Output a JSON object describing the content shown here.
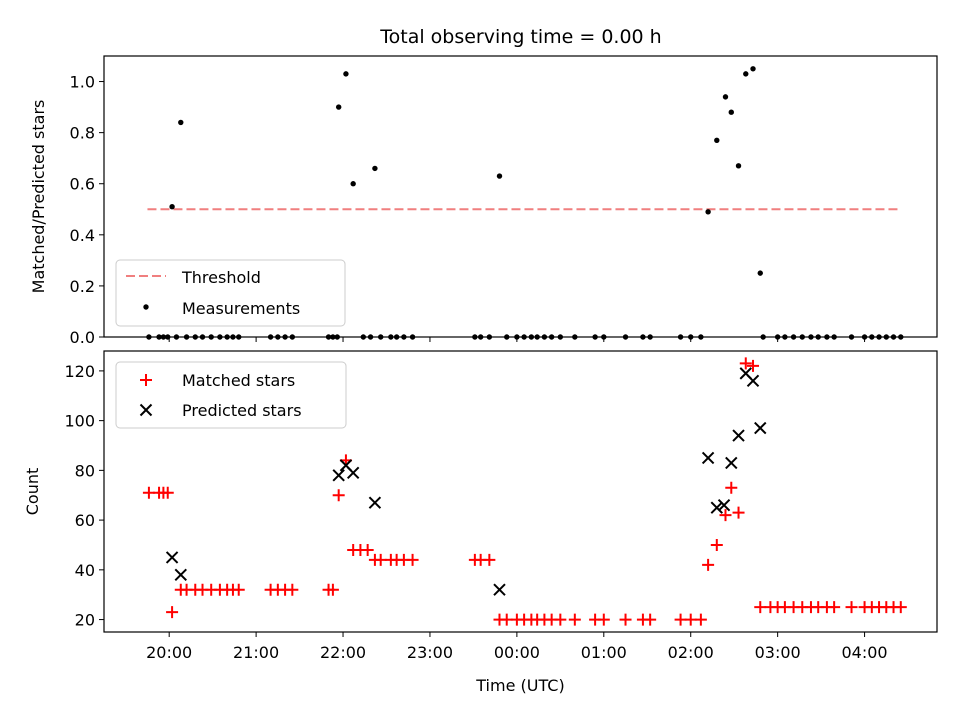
{
  "title": "Total observing time = 0.00 h",
  "chart_data": [
    {
      "type": "scatter",
      "ylabel": "Matched/Predicted stars",
      "ylim": [
        0,
        1.1
      ],
      "yticks": [
        "0.0",
        "0.2",
        "0.4",
        "0.6",
        "0.8",
        "1.0"
      ],
      "xlim": [
        "19:15",
        "04:50"
      ],
      "legend_position": "lower-left",
      "threshold": {
        "name": "Threshold",
        "value": 0.5,
        "x": [
          "19:45",
          "04:25"
        ],
        "color": "#f07f7f",
        "style": "dashed"
      },
      "series": [
        {
          "name": "Measurements",
          "color": "#000000",
          "points": [
            [
              "19:46",
              0
            ],
            [
              "19:53",
              0
            ],
            [
              "19:56",
              0
            ],
            [
              "19:59",
              0
            ],
            [
              "20:02",
              0.51
            ],
            [
              "20:08",
              0.84
            ],
            [
              "20:05",
              0
            ],
            [
              "20:12",
              0
            ],
            [
              "20:18",
              0
            ],
            [
              "20:23",
              0
            ],
            [
              "20:29",
              0
            ],
            [
              "20:35",
              0
            ],
            [
              "20:40",
              0
            ],
            [
              "20:44",
              0
            ],
            [
              "20:48",
              0
            ],
            [
              "21:10",
              0
            ],
            [
              "21:15",
              0
            ],
            [
              "21:20",
              0
            ],
            [
              "21:25",
              0
            ],
            [
              "21:50",
              0
            ],
            [
              "21:53",
              0
            ],
            [
              "21:56",
              0
            ],
            [
              "21:57",
              0.9
            ],
            [
              "22:02",
              1.03
            ],
            [
              "22:07",
              0.6
            ],
            [
              "22:22",
              0.66
            ],
            [
              "22:14",
              0
            ],
            [
              "22:19",
              0
            ],
            [
              "22:26",
              0
            ],
            [
              "22:33",
              0
            ],
            [
              "22:37",
              0
            ],
            [
              "22:42",
              0
            ],
            [
              "22:48",
              0
            ],
            [
              "23:31",
              0
            ],
            [
              "23:35",
              0
            ],
            [
              "23:41",
              0
            ],
            [
              "23:48",
              0.63
            ],
            [
              "23:53",
              0
            ],
            [
              "24:00",
              0
            ],
            [
              "24:05",
              0
            ],
            [
              "24:10",
              0
            ],
            [
              "24:14",
              0
            ],
            [
              "24:19",
              0
            ],
            [
              "24:24",
              0
            ],
            [
              "24:30",
              0
            ],
            [
              "24:40",
              0
            ],
            [
              "24:54",
              0
            ],
            [
              "25:00",
              0
            ],
            [
              "25:15",
              0
            ],
            [
              "25:27",
              0
            ],
            [
              "25:32",
              0
            ],
            [
              "25:53",
              0
            ],
            [
              "26:00",
              0
            ],
            [
              "26:07",
              0
            ],
            [
              "26:12",
              0.49
            ],
            [
              "26:18",
              0.77
            ],
            [
              "26:24",
              0.94
            ],
            [
              "26:28",
              0.88
            ],
            [
              "26:33",
              0.67
            ],
            [
              "26:38",
              1.03
            ],
            [
              "26:43",
              1.05
            ],
            [
              "26:48",
              0.25
            ],
            [
              "26:50",
              0
            ],
            [
              "27:00",
              0
            ],
            [
              "27:05",
              0
            ],
            [
              "27:11",
              0
            ],
            [
              "27:17",
              0
            ],
            [
              "27:23",
              0
            ],
            [
              "27:28",
              0
            ],
            [
              "27:34",
              0
            ],
            [
              "27:39",
              0
            ],
            [
              "27:51",
              0
            ],
            [
              "28:00",
              0
            ],
            [
              "28:05",
              0
            ],
            [
              "28:10",
              0
            ],
            [
              "28:15",
              0
            ],
            [
              "28:20",
              0
            ],
            [
              "28:25",
              0
            ]
          ]
        }
      ]
    },
    {
      "type": "scatter",
      "xlabel": "Time (UTC)",
      "ylabel": "Count",
      "ylim": [
        15,
        128
      ],
      "yticks": [
        "20",
        "40",
        "60",
        "80",
        "100",
        "120"
      ],
      "xlim": [
        "19:15",
        "04:50"
      ],
      "xticks": [
        "20:00",
        "21:00",
        "22:00",
        "23:00",
        "00:00",
        "01:00",
        "02:00",
        "03:00",
        "04:00"
      ],
      "legend_position": "upper-left",
      "series": [
        {
          "name": "Matched stars",
          "marker": "+",
          "color": "#ff0000",
          "points": [
            [
              "19:46",
              71
            ],
            [
              "19:53",
              71
            ],
            [
              "19:56",
              71
            ],
            [
              "19:59",
              71
            ],
            [
              "20:02",
              23
            ],
            [
              "20:08",
              32
            ],
            [
              "20:12",
              32
            ],
            [
              "20:18",
              32
            ],
            [
              "20:23",
              32
            ],
            [
              "20:29",
              32
            ],
            [
              "20:35",
              32
            ],
            [
              "20:40",
              32
            ],
            [
              "20:44",
              32
            ],
            [
              "20:48",
              32
            ],
            [
              "21:10",
              32
            ],
            [
              "21:15",
              32
            ],
            [
              "21:20",
              32
            ],
            [
              "21:25",
              32
            ],
            [
              "21:50",
              32
            ],
            [
              "21:53",
              32
            ],
            [
              "21:57",
              70
            ],
            [
              "22:02",
              84
            ],
            [
              "22:07",
              48
            ],
            [
              "22:12",
              48
            ],
            [
              "22:17",
              48
            ],
            [
              "22:22",
              44
            ],
            [
              "22:26",
              44
            ],
            [
              "22:33",
              44
            ],
            [
              "22:37",
              44
            ],
            [
              "22:42",
              44
            ],
            [
              "22:48",
              44
            ],
            [
              "23:31",
              44
            ],
            [
              "23:35",
              44
            ],
            [
              "23:41",
              44
            ],
            [
              "23:48",
              20
            ],
            [
              "23:53",
              20
            ],
            [
              "24:00",
              20
            ],
            [
              "24:05",
              20
            ],
            [
              "24:10",
              20
            ],
            [
              "24:14",
              20
            ],
            [
              "24:19",
              20
            ],
            [
              "24:24",
              20
            ],
            [
              "24:30",
              20
            ],
            [
              "24:40",
              20
            ],
            [
              "24:54",
              20
            ],
            [
              "25:00",
              20
            ],
            [
              "25:15",
              20
            ],
            [
              "25:27",
              20
            ],
            [
              "25:32",
              20
            ],
            [
              "25:53",
              20
            ],
            [
              "26:00",
              20
            ],
            [
              "26:07",
              20
            ],
            [
              "26:12",
              42
            ],
            [
              "26:18",
              50
            ],
            [
              "26:24",
              62
            ],
            [
              "26:28",
              73
            ],
            [
              "26:33",
              63
            ],
            [
              "26:38",
              123
            ],
            [
              "26:43",
              122
            ],
            [
              "26:48",
              25
            ],
            [
              "26:55",
              25
            ],
            [
              "27:00",
              25
            ],
            [
              "27:05",
              25
            ],
            [
              "27:11",
              25
            ],
            [
              "27:17",
              25
            ],
            [
              "27:23",
              25
            ],
            [
              "27:28",
              25
            ],
            [
              "27:34",
              25
            ],
            [
              "27:39",
              25
            ],
            [
              "27:51",
              25
            ],
            [
              "28:00",
              25
            ],
            [
              "28:05",
              25
            ],
            [
              "28:10",
              25
            ],
            [
              "28:15",
              25
            ],
            [
              "28:20",
              25
            ],
            [
              "28:25",
              25
            ]
          ]
        },
        {
          "name": "Predicted stars",
          "marker": "x",
          "color": "#000000",
          "points": [
            [
              "20:02",
              45
            ],
            [
              "20:08",
              38
            ],
            [
              "21:57",
              78
            ],
            [
              "22:02",
              82
            ],
            [
              "22:07",
              79
            ],
            [
              "22:22",
              67
            ],
            [
              "23:48",
              32
            ],
            [
              "26:12",
              85
            ],
            [
              "26:18",
              65
            ],
            [
              "26:23",
              66
            ],
            [
              "26:28",
              83
            ],
            [
              "26:33",
              94
            ],
            [
              "26:38",
              119
            ],
            [
              "26:43",
              116
            ],
            [
              "26:48",
              97
            ]
          ]
        }
      ]
    }
  ]
}
